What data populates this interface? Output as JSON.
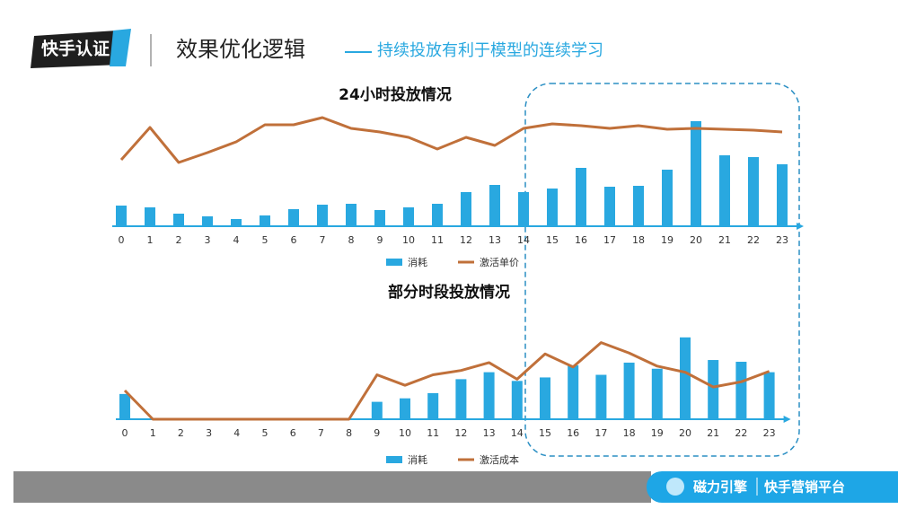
{
  "badge": "快手认证",
  "title": "效果优化逻辑",
  "subtitle": "持续投放有利于模型的连续学习",
  "footer": {
    "left": "磁力引擎",
    "right": "快手营销平台"
  },
  "chart_data": [
    {
      "type": "bar-line",
      "title": "24小时投放情况",
      "categories": [
        "0",
        "1",
        "2",
        "3",
        "4",
        "5",
        "6",
        "7",
        "8",
        "9",
        "10",
        "11",
        "12",
        "13",
        "14",
        "15",
        "16",
        "17",
        "18",
        "19",
        "20",
        "21",
        "22",
        "23"
      ],
      "ylim": [
        0,
        130
      ],
      "series": [
        {
          "name": "消耗",
          "type": "bar",
          "color": "#29a8e0",
          "values": [
            23,
            21,
            14,
            11,
            8,
            12,
            19,
            24,
            25,
            18,
            21,
            25,
            38,
            46,
            38,
            42,
            65,
            44,
            45,
            63,
            117,
            79,
            77,
            69
          ]
        },
        {
          "name": "激活单价",
          "type": "line",
          "color": "#c0703a",
          "values": [
            74,
            110,
            71,
            82,
            94,
            113,
            113,
            121,
            109,
            105,
            99,
            86,
            99,
            90,
            109,
            114,
            112,
            109,
            112,
            108,
            109,
            108,
            107,
            105
          ]
        }
      ]
    },
    {
      "type": "bar-line",
      "title": "部分时段投放情况",
      "categories": [
        "0",
        "1",
        "2",
        "3",
        "4",
        "5",
        "6",
        "7",
        "8",
        "9",
        "10",
        "11",
        "12",
        "13",
        "14",
        "15",
        "16",
        "17",
        "18",
        "19",
        "20",
        "21",
        "22",
        "23"
      ],
      "ylim": [
        0,
        100
      ],
      "series": [
        {
          "name": "消耗",
          "type": "bar",
          "color": "#29a8e0",
          "values": [
            29,
            0,
            0,
            0,
            0,
            0,
            0,
            0,
            0,
            20,
            24,
            30,
            46,
            54,
            44,
            48,
            62,
            51,
            65,
            58,
            94,
            68,
            66,
            54
          ]
        },
        {
          "name": "激活成本",
          "type": "line",
          "color": "#c0703a",
          "values": [
            33,
            0,
            0,
            0,
            0,
            0,
            0,
            0,
            0,
            51,
            39,
            51,
            56,
            65,
            46,
            75,
            60,
            88,
            76,
            61,
            54,
            37,
            43,
            55
          ]
        }
      ]
    }
  ]
}
